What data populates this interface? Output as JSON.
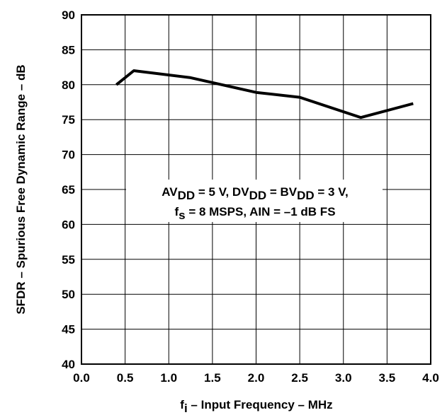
{
  "chart_data": {
    "type": "line",
    "title": "",
    "xlabel": {
      "main": "f",
      "sub": "i",
      "rest": " – Input Frequency – MHz"
    },
    "ylabel": "SFDR – Spurious Free Dynamic Range – dB",
    "xlim": [
      0.0,
      4.0
    ],
    "ylim": [
      40,
      90
    ],
    "xticks": [
      "0.0",
      "0.5",
      "1.0",
      "1.5",
      "2.0",
      "2.5",
      "3.0",
      "3.5",
      "4.0"
    ],
    "yticks": [
      "40",
      "45",
      "50",
      "55",
      "60",
      "65",
      "70",
      "75",
      "80",
      "85",
      "90"
    ],
    "grid": true,
    "series": [
      {
        "x": [
          0.4,
          0.6,
          1.25,
          2.0,
          2.5,
          3.2,
          3.8
        ],
        "y": [
          80.0,
          82.0,
          81.0,
          78.9,
          78.2,
          75.3,
          77.3
        ]
      }
    ],
    "annotation": {
      "line1": [
        {
          "t": "AV"
        },
        {
          "t": "DD",
          "sub": true
        },
        {
          "t": " = 5 V, DV"
        },
        {
          "t": "DD",
          "sub": true
        },
        {
          "t": " = BV"
        },
        {
          "t": "DD",
          "sub": true
        },
        {
          "t": " = 3 V,"
        }
      ],
      "line2": [
        {
          "t": "f"
        },
        {
          "t": "s",
          "sub": true
        },
        {
          "t": " = 8 MSPS, AIN = –1 dB FS"
        }
      ]
    },
    "colors": {
      "line": "#000000",
      "grid": "#000000",
      "background": "#ffffff"
    }
  }
}
